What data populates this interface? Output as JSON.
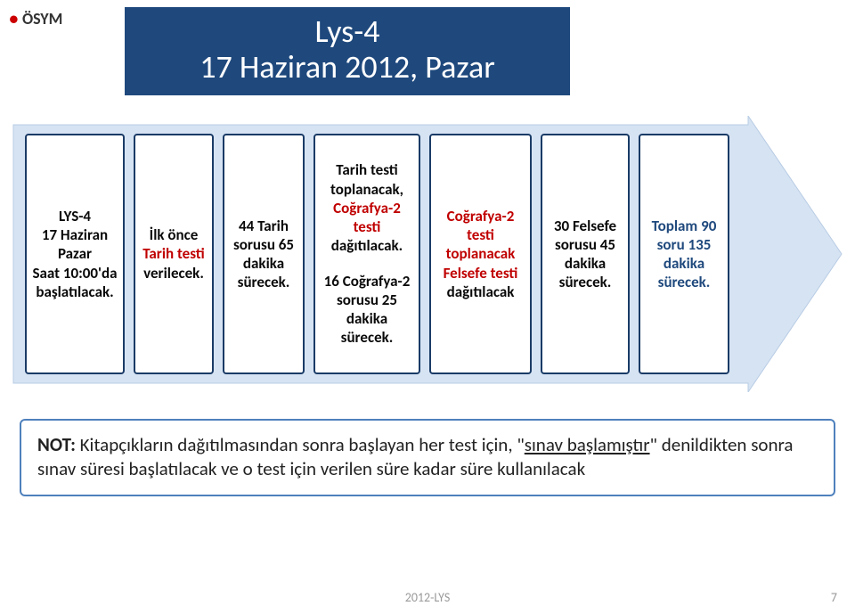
{
  "logo": {
    "text": "ÖSYM"
  },
  "title": {
    "line1": "Lys-4",
    "line2": "17 Haziran 2012, Pazar"
  },
  "arrow": {
    "fill": "#d6e3f3",
    "stroke": "#b8cce4",
    "box_border": "#1a3b66",
    "note_border": "#4f81bd"
  },
  "boxes": [
    {
      "parts": [
        {
          "text": "LYS-4",
          "cls": "black"
        },
        {
          "text": "17 Haziran Pazar",
          "cls": "black"
        },
        {
          "text": "Saat 10:00'da başlatılacak.",
          "cls": "black"
        }
      ]
    },
    {
      "parts": [
        {
          "text": "İlk önce",
          "cls": "black"
        },
        {
          "text": "Tarih testi",
          "cls": "red"
        },
        {
          "text": "verilecek.",
          "cls": "black"
        }
      ]
    },
    {
      "parts": [
        {
          "text": "44 Tarih sorusu 65 dakika sürecek.",
          "cls": "black"
        }
      ]
    },
    {
      "parts": [
        {
          "text": "Tarih testi toplanacak,",
          "cls": "black"
        },
        {
          "text": "Coğrafya-2 testi",
          "cls": "red"
        },
        {
          "text": "dağıtılacak.",
          "cls": "black"
        },
        {
          "text": "16 Coğrafya-2 sorusu 25 dakika sürecek.",
          "cls": "black sec"
        }
      ]
    },
    {
      "parts": [
        {
          "text": "Coğrafya-2 testi toplanacak",
          "cls": "red"
        },
        {
          "text": "Felsefe testi",
          "cls": "red"
        },
        {
          "text": "dağıtılacak",
          "cls": "black"
        }
      ]
    },
    {
      "parts": [
        {
          "text": "30 Felsefe sorusu 45 dakika sürecek.",
          "cls": "black"
        }
      ]
    },
    {
      "parts": [
        {
          "text": "Toplam 90 soru 135 dakika sürecek.",
          "cls": "blue"
        }
      ]
    }
  ],
  "note": {
    "prefix_bold": "NOT:",
    "before": " Kitapçıkların dağıtılmasından sonra başlayan her test için, \"",
    "underlined": "sınav başlamıştır",
    "after": "\" denildikten sonra  sınav süresi başlatılacak ve o test için verilen süre kadar süre kullanılacak"
  },
  "footer": {
    "text": "2012-LYS",
    "page": "7"
  }
}
